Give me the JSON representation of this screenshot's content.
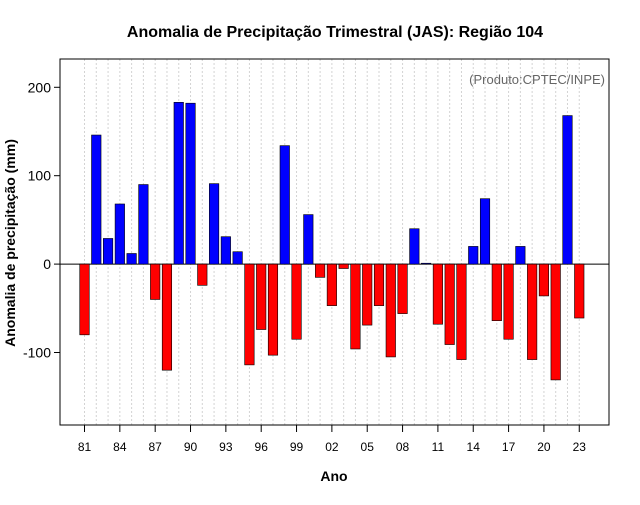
{
  "chart_data": {
    "type": "bar",
    "title": "Anomalia de Precipitação Trimestral (JAS): Região 104",
    "annotation": "(Produto:CPTEC/INPE)",
    "xlabel": "Ano",
    "ylabel": "Anomalia de precipitação (mm)",
    "ylim": [
      -182,
      232
    ],
    "yticks": [
      -100,
      0,
      100,
      200
    ],
    "ytick_labels": [
      "-100",
      "0",
      "100",
      "200"
    ],
    "xtick_years": [
      1981,
      1984,
      1987,
      1990,
      1993,
      1996,
      1999,
      2002,
      2005,
      2008,
      2011,
      2014,
      2017,
      2020,
      2023
    ],
    "xtick_labels": [
      "81",
      "84",
      "87",
      "90",
      "93",
      "96",
      "99",
      "02",
      "05",
      "08",
      "11",
      "14",
      "17",
      "20",
      "23"
    ],
    "grid": true,
    "colors": {
      "positive": "#0000ff",
      "negative": "#ff0000"
    },
    "categories": [
      1981,
      1982,
      1983,
      1984,
      1985,
      1986,
      1987,
      1988,
      1989,
      1990,
      1991,
      1992,
      1993,
      1994,
      1995,
      1996,
      1997,
      1998,
      1999,
      2000,
      2001,
      2002,
      2003,
      2004,
      2005,
      2006,
      2007,
      2008,
      2009,
      2010,
      2011,
      2012,
      2013,
      2014,
      2015,
      2016,
      2017,
      2018,
      2019,
      2020,
      2021,
      2022,
      2023
    ],
    "values": [
      -80,
      146,
      29,
      68,
      12,
      90,
      -40,
      -120,
      183,
      182,
      -24,
      91,
      31,
      14,
      -114,
      -74,
      -103,
      134,
      -85,
      56,
      -15,
      -47,
      -5,
      -96,
      -69,
      -47,
      -105,
      -56,
      40,
      1,
      -68,
      -91,
      -108,
      20,
      74,
      -64,
      -85,
      20,
      -108,
      -36,
      -131,
      168,
      -61
    ]
  }
}
